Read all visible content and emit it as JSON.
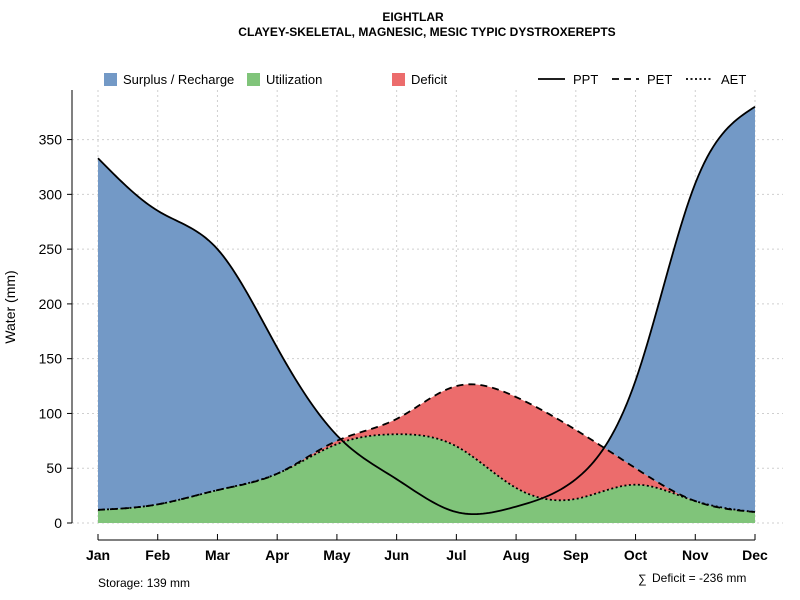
{
  "chart_data": {
    "type": "area",
    "title": "EIGHTLAR",
    "subtitle": "CLAYEY-SKELETAL, MAGNESIC, MESIC TYPIC DYSTROXEREPTS",
    "ylabel": "Water (mm)",
    "xlabel": "",
    "ylim": [
      0,
      390
    ],
    "yticks": [
      0,
      50,
      100,
      150,
      200,
      250,
      300,
      350
    ],
    "categories": [
      "Jan",
      "Feb",
      "Mar",
      "Apr",
      "May",
      "Jun",
      "Jul",
      "Aug",
      "Sep",
      "Oct",
      "Nov",
      "Dec"
    ],
    "series": [
      {
        "name": "PPT",
        "style": "solid",
        "values": [
          333,
          285,
          250,
          160,
          80,
          40,
          10,
          15,
          40,
          130,
          310,
          380
        ]
      },
      {
        "name": "PET",
        "style": "dashed",
        "values": [
          12,
          17,
          30,
          45,
          75,
          95,
          125,
          115,
          85,
          50,
          20,
          10
        ]
      },
      {
        "name": "AET",
        "style": "dotted",
        "values": [
          12,
          17,
          30,
          45,
          72,
          81,
          70,
          32,
          22,
          35,
          20,
          10
        ]
      }
    ],
    "fill_legend": [
      {
        "name": "Surplus / Recharge",
        "color": "#7399c6"
      },
      {
        "name": "Utilization",
        "color": "#80c47a"
      },
      {
        "name": "Deficit",
        "color": "#ec6c6c"
      }
    ],
    "storage_label": "Storage: 139 mm",
    "deficit_label": "Deficit = -236 mm",
    "deficit_symbol": "∑",
    "grid": true
  }
}
